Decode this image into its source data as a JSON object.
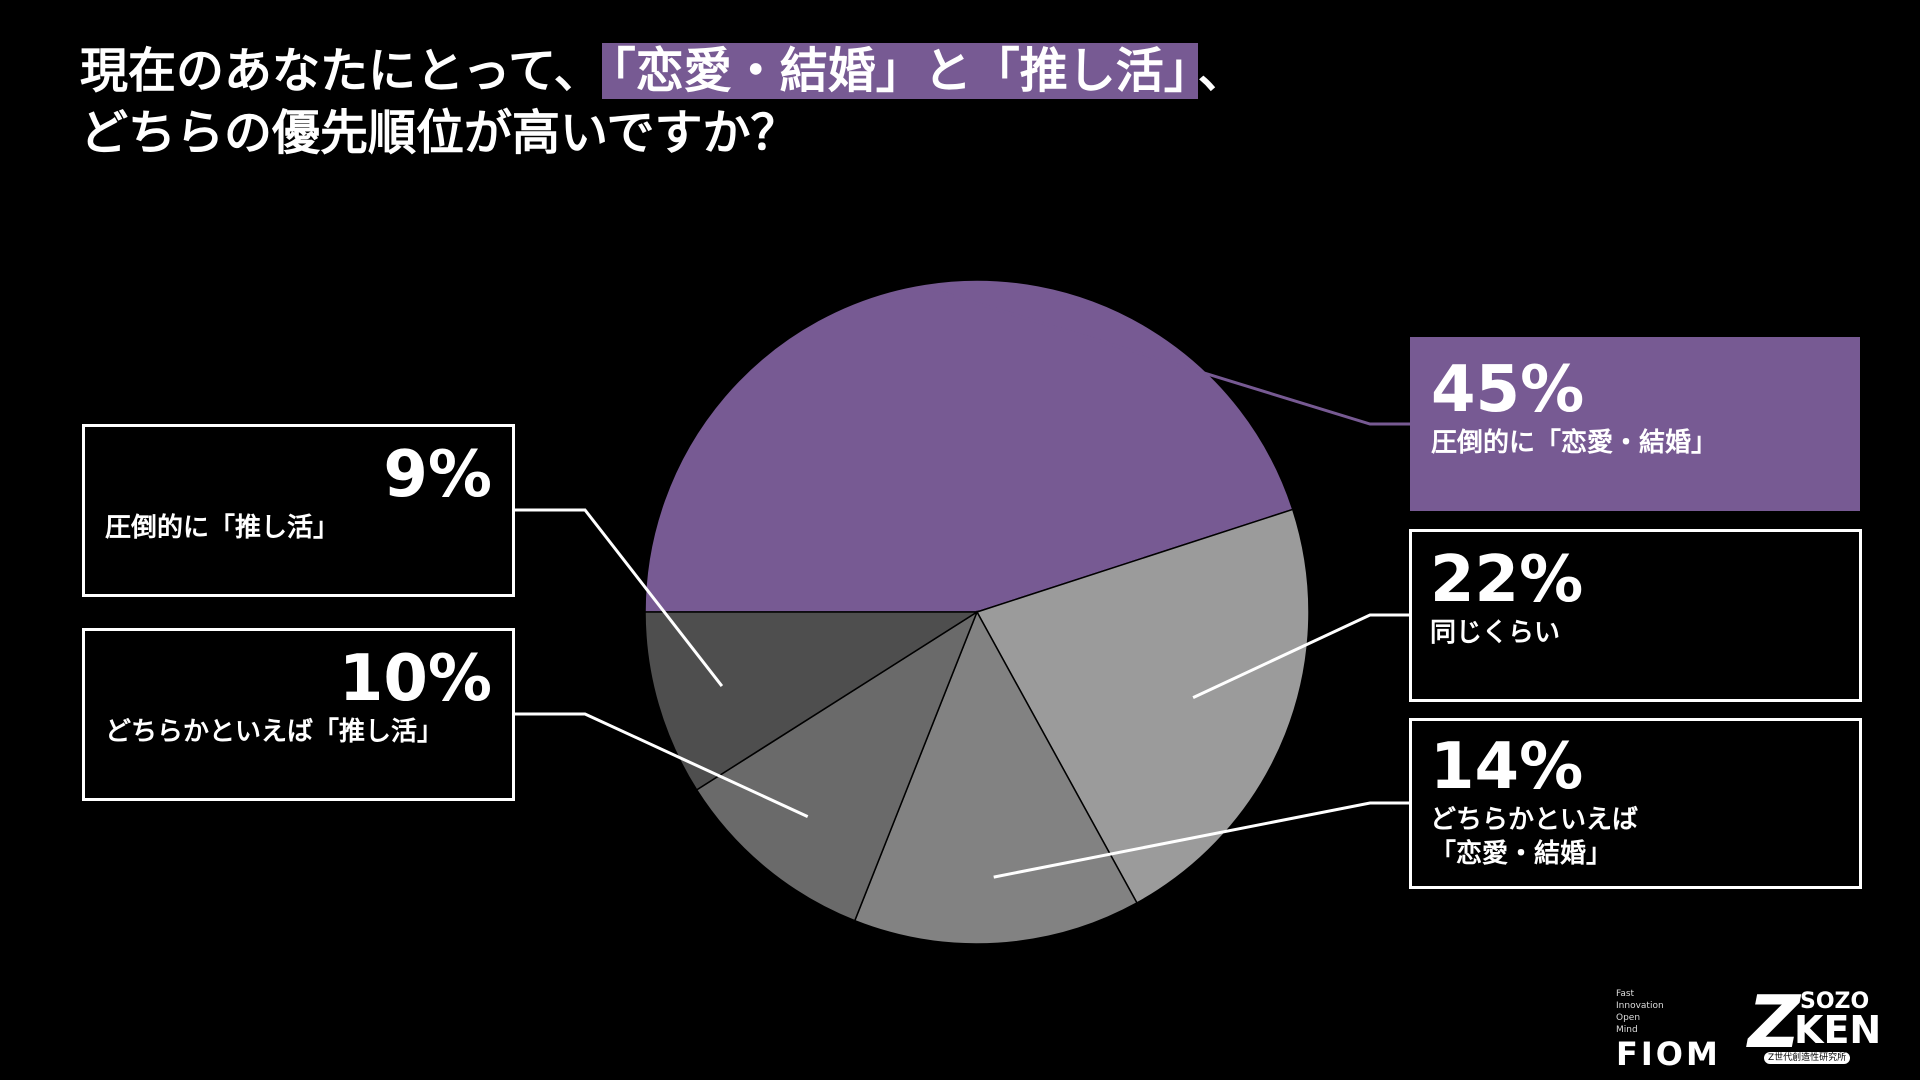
{
  "title": {
    "line1_before": "現在のあなたにとって、",
    "line1_highlight": "「恋愛・結婚」と「推し活」",
    "line1_after": "、",
    "line2": "どちらの優先順位が高いですか？"
  },
  "chart_data": {
    "type": "pie",
    "title": "現在のあなたにとって、「恋愛・結婚」と「推し活」、どちらの優先順位が高いですか？",
    "slices": [
      {
        "label": "圧倒的に「恋愛・結婚」",
        "label_lines": [
          "圧倒的に「恋愛・結婚」"
        ],
        "value": 45,
        "display": "45%",
        "color": "#775a93"
      },
      {
        "label": "同じくらい",
        "label_lines": [
          "同じくらい"
        ],
        "value": 22,
        "display": "22%",
        "color": "#9b9b9b"
      },
      {
        "label": "どちらかといえば「恋愛・結婚」",
        "label_lines": [
          "どちらかといえば",
          "「恋愛・結婚」"
        ],
        "value": 14,
        "display": "14%",
        "color": "#828282"
      },
      {
        "label": "どちらかといえば「推し活」",
        "label_lines": [
          "どちらかといえば「推し活」"
        ],
        "value": 10,
        "display": "10%",
        "color": "#6a6a6a"
      },
      {
        "label": "圧倒的に「推し活」",
        "label_lines": [
          "圧倒的に「推し活」"
        ],
        "value": 9,
        "display": "9%",
        "color": "#4e4e4e"
      }
    ]
  },
  "logos": {
    "fiom_small": [
      "Fast",
      "Innovation",
      "Open",
      "Mind"
    ],
    "fiom": "FIOM",
    "zken_z": "Z",
    "zken_sozo": "SOZO",
    "zken_ken": "KEN",
    "zken_tag": "Z世代創造性研究所"
  }
}
